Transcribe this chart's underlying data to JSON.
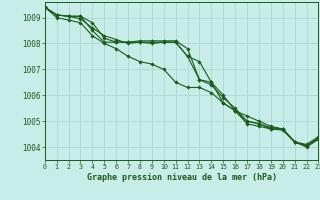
{
  "title": "Graphe pression niveau de la mer (hPa)",
  "bg_color": "#c8ece8",
  "grid_color": "#b0d8d4",
  "line_color": "#1a5c1a",
  "xlim": [
    0,
    23
  ],
  "ylim": [
    1003.5,
    1009.6
  ],
  "yticks": [
    1004,
    1005,
    1006,
    1007,
    1008,
    1009
  ],
  "xticks": [
    0,
    1,
    2,
    3,
    4,
    5,
    6,
    7,
    8,
    9,
    10,
    11,
    12,
    13,
    14,
    15,
    16,
    17,
    18,
    19,
    20,
    21,
    22,
    23
  ],
  "series": [
    [
      1009.4,
      1009.1,
      1009.05,
      1009.05,
      1008.8,
      1008.2,
      1008.05,
      1008.05,
      1008.05,
      1008.05,
      1008.05,
      1008.05,
      1007.5,
      1007.3,
      1006.5,
      1005.7,
      1005.4,
      1005.2,
      1005.0,
      1004.8,
      1004.7,
      1004.2,
      1004.1,
      1004.4
    ],
    [
      1009.4,
      1009.1,
      1009.05,
      1009.05,
      1008.5,
      1008.05,
      1008.05,
      1008.05,
      1008.1,
      1008.1,
      1008.1,
      1008.1,
      1007.8,
      1006.6,
      1006.5,
      1006.0,
      1005.4,
      1004.9,
      1004.8,
      1004.7,
      1004.7,
      1004.2,
      1004.05,
      1004.3
    ],
    [
      1009.4,
      1009.0,
      1008.9,
      1008.8,
      1008.3,
      1008.0,
      1007.8,
      1007.5,
      1007.3,
      1007.2,
      1007.0,
      1006.5,
      1006.3,
      1006.3,
      1006.1,
      1005.7,
      1005.4,
      1005.0,
      1004.9,
      1004.7,
      1004.65,
      1004.2,
      1004.0,
      1004.3
    ],
    [
      1009.4,
      1009.1,
      1009.05,
      1008.95,
      1008.6,
      1008.3,
      1008.15,
      1008.0,
      1008.05,
      1008.0,
      1008.05,
      1008.05,
      1007.5,
      1006.6,
      1006.4,
      1005.9,
      1005.5,
      1005.0,
      1004.9,
      1004.75,
      1004.7,
      1004.2,
      1004.05,
      1004.35
    ]
  ]
}
